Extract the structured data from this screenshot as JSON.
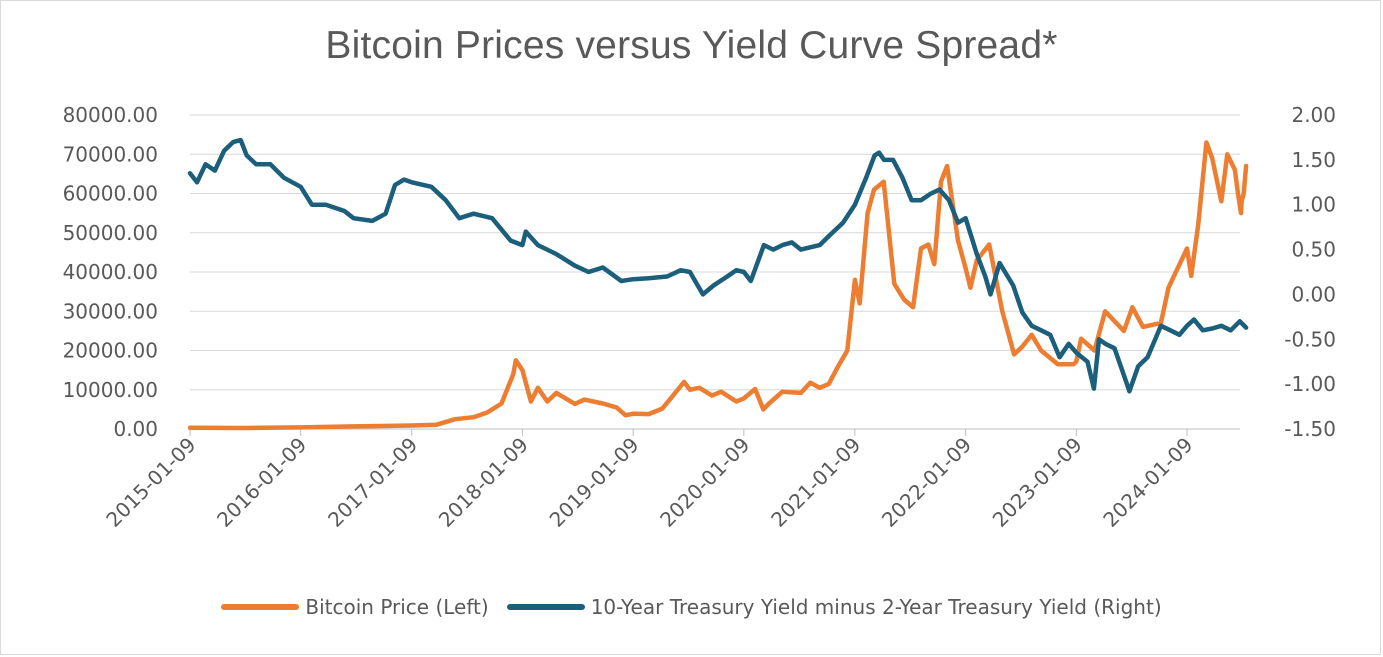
{
  "chart_data": {
    "type": "line",
    "title": "Bitcoin Prices versus Yield Curve Spread*",
    "x_ticks": [
      "2015-01-09",
      "2016-01-09",
      "2017-01-09",
      "2018-01-09",
      "2019-01-09",
      "2020-01-09",
      "2021-01-09",
      "2022-01-09",
      "2023-01-09",
      "2024-01-09"
    ],
    "x_range": [
      "2015-01-09",
      "2024-07-01"
    ],
    "y_left": {
      "ticks": [
        "0.00",
        "10000.00",
        "20000.00",
        "30000.00",
        "40000.00",
        "50000.00",
        "60000.00",
        "70000.00",
        "80000.00"
      ],
      "ylim": [
        0,
        80000
      ]
    },
    "y_right": {
      "ticks": [
        "-1.50",
        "-1.00",
        "-0.50",
        "0.00",
        "0.50",
        "1.00",
        "1.50",
        "2.00"
      ],
      "ylim": [
        -1.5,
        2.0
      ]
    },
    "grid": "horizontal",
    "legend_position": "bottom",
    "series": [
      {
        "name": "Bitcoin Price (Left)",
        "axis": "left",
        "color": "#ed7d31",
        "points": [
          [
            "2015-01-09",
            300
          ],
          [
            "2015-07-01",
            260
          ],
          [
            "2016-01-09",
            400
          ],
          [
            "2016-07-01",
            650
          ],
          [
            "2017-01-09",
            900
          ],
          [
            "2017-04-01",
            1100
          ],
          [
            "2017-06-01",
            2500
          ],
          [
            "2017-08-01",
            3000
          ],
          [
            "2017-09-15",
            4200
          ],
          [
            "2017-11-01",
            6500
          ],
          [
            "2017-12-10",
            14000
          ],
          [
            "2017-12-18",
            17500
          ],
          [
            "2018-01-09",
            15000
          ],
          [
            "2018-02-06",
            7000
          ],
          [
            "2018-03-01",
            10500
          ],
          [
            "2018-04-01",
            7000
          ],
          [
            "2018-05-01",
            9200
          ],
          [
            "2018-07-01",
            6400
          ],
          [
            "2018-08-01",
            7500
          ],
          [
            "2018-10-01",
            6500
          ],
          [
            "2018-11-15",
            5500
          ],
          [
            "2018-12-15",
            3500
          ],
          [
            "2019-01-09",
            3900
          ],
          [
            "2019-03-01",
            3800
          ],
          [
            "2019-04-15",
            5200
          ],
          [
            "2019-05-15",
            8000
          ],
          [
            "2019-06-26",
            12000
          ],
          [
            "2019-07-15",
            10000
          ],
          [
            "2019-08-15",
            10500
          ],
          [
            "2019-09-26",
            8500
          ],
          [
            "2019-10-26",
            9500
          ],
          [
            "2019-12-15",
            7000
          ],
          [
            "2020-01-09",
            7800
          ],
          [
            "2020-02-15",
            10200
          ],
          [
            "2020-03-13",
            5000
          ],
          [
            "2020-04-01",
            6500
          ],
          [
            "2020-05-15",
            9500
          ],
          [
            "2020-07-15",
            9200
          ],
          [
            "2020-08-15",
            11800
          ],
          [
            "2020-09-15",
            10500
          ],
          [
            "2020-10-15",
            11500
          ],
          [
            "2020-11-15",
            16000
          ],
          [
            "2020-12-15",
            20000
          ],
          [
            "2021-01-09",
            38000
          ],
          [
            "2021-01-25",
            32000
          ],
          [
            "2021-02-20",
            55000
          ],
          [
            "2021-03-13",
            61000
          ],
          [
            "2021-04-14",
            63000
          ],
          [
            "2021-05-19",
            37000
          ],
          [
            "2021-06-20",
            33000
          ],
          [
            "2021-07-20",
            31000
          ],
          [
            "2021-08-15",
            46000
          ],
          [
            "2021-09-08",
            47000
          ],
          [
            "2021-09-28",
            42000
          ],
          [
            "2021-10-20",
            63000
          ],
          [
            "2021-11-09",
            67000
          ],
          [
            "2021-12-15",
            48000
          ],
          [
            "2022-01-09",
            41000
          ],
          [
            "2022-01-25",
            36000
          ],
          [
            "2022-02-15",
            43000
          ],
          [
            "2022-03-28",
            47000
          ],
          [
            "2022-05-10",
            30000
          ],
          [
            "2022-06-18",
            19000
          ],
          [
            "2022-07-15",
            21000
          ],
          [
            "2022-08-15",
            24000
          ],
          [
            "2022-09-15",
            20000
          ],
          [
            "2022-11-09",
            16500
          ],
          [
            "2022-12-31",
            16500
          ],
          [
            "2023-01-09",
            17200
          ],
          [
            "2023-01-25",
            23000
          ],
          [
            "2023-03-10",
            20000
          ],
          [
            "2023-04-14",
            30000
          ],
          [
            "2023-06-15",
            25000
          ],
          [
            "2023-07-13",
            31000
          ],
          [
            "2023-08-17",
            26000
          ],
          [
            "2023-10-15",
            27000
          ],
          [
            "2023-11-09",
            36000
          ],
          [
            "2024-01-09",
            46000
          ],
          [
            "2024-01-23",
            39000
          ],
          [
            "2024-02-15",
            52000
          ],
          [
            "2024-03-13",
            73000
          ],
          [
            "2024-04-01",
            69000
          ],
          [
            "2024-05-01",
            58000
          ],
          [
            "2024-05-21",
            70000
          ],
          [
            "2024-06-15",
            66000
          ],
          [
            "2024-06-25",
            60000
          ],
          [
            "2024-07-05",
            55000
          ],
          [
            "2024-07-07",
            58000
          ],
          [
            "2024-07-14",
            60000
          ],
          [
            "2024-07-22",
            67000
          ]
        ]
      },
      {
        "name": "10-Year Treasury Yield minus 2-Year Treasury Yield (Right)",
        "axis": "right",
        "color": "#1b5f7d",
        "points": [
          [
            "2015-01-09",
            1.35
          ],
          [
            "2015-02-01",
            1.25
          ],
          [
            "2015-03-01",
            1.45
          ],
          [
            "2015-04-01",
            1.38
          ],
          [
            "2015-05-01",
            1.6
          ],
          [
            "2015-06-01",
            1.7
          ],
          [
            "2015-06-25",
            1.72
          ],
          [
            "2015-07-15",
            1.55
          ],
          [
            "2015-08-15",
            1.45
          ],
          [
            "2015-10-01",
            1.45
          ],
          [
            "2015-11-15",
            1.3
          ],
          [
            "2016-01-09",
            1.2
          ],
          [
            "2016-02-15",
            1.0
          ],
          [
            "2016-04-01",
            1.0
          ],
          [
            "2016-06-01",
            0.93
          ],
          [
            "2016-07-01",
            0.85
          ],
          [
            "2016-09-01",
            0.82
          ],
          [
            "2016-10-15",
            0.9
          ],
          [
            "2016-11-15",
            1.22
          ],
          [
            "2016-12-15",
            1.28
          ],
          [
            "2017-01-09",
            1.25
          ],
          [
            "2017-03-15",
            1.2
          ],
          [
            "2017-05-01",
            1.05
          ],
          [
            "2017-06-15",
            0.85
          ],
          [
            "2017-08-01",
            0.9
          ],
          [
            "2017-10-01",
            0.85
          ],
          [
            "2017-12-01",
            0.6
          ],
          [
            "2018-01-09",
            0.55
          ],
          [
            "2018-01-20",
            0.7
          ],
          [
            "2018-03-01",
            0.55
          ],
          [
            "2018-05-01",
            0.45
          ],
          [
            "2018-07-01",
            0.32
          ],
          [
            "2018-08-15",
            0.25
          ],
          [
            "2018-10-01",
            0.3
          ],
          [
            "2018-12-01",
            0.15
          ],
          [
            "2019-01-09",
            0.17
          ],
          [
            "2019-03-01",
            0.18
          ],
          [
            "2019-05-01",
            0.2
          ],
          [
            "2019-06-15",
            0.27
          ],
          [
            "2019-07-15",
            0.25
          ],
          [
            "2019-08-27",
            0.0
          ],
          [
            "2019-10-01",
            0.1
          ],
          [
            "2019-11-15",
            0.2
          ],
          [
            "2019-12-15",
            0.27
          ],
          [
            "2020-01-09",
            0.25
          ],
          [
            "2020-02-01",
            0.15
          ],
          [
            "2020-03-15",
            0.55
          ],
          [
            "2020-04-15",
            0.5
          ],
          [
            "2020-05-15",
            0.55
          ],
          [
            "2020-06-15",
            0.58
          ],
          [
            "2020-07-15",
            0.5
          ],
          [
            "2020-09-15",
            0.55
          ],
          [
            "2020-10-15",
            0.65
          ],
          [
            "2020-12-01",
            0.8
          ],
          [
            "2021-01-09",
            1.0
          ],
          [
            "2021-02-15",
            1.3
          ],
          [
            "2021-03-15",
            1.55
          ],
          [
            "2021-03-30",
            1.58
          ],
          [
            "2021-04-15",
            1.5
          ],
          [
            "2021-05-15",
            1.5
          ],
          [
            "2021-06-15",
            1.3
          ],
          [
            "2021-07-15",
            1.05
          ],
          [
            "2021-08-15",
            1.05
          ],
          [
            "2021-09-15",
            1.12
          ],
          [
            "2021-10-15",
            1.17
          ],
          [
            "2021-11-15",
            1.05
          ],
          [
            "2021-12-15",
            0.8
          ],
          [
            "2022-01-09",
            0.85
          ],
          [
            "2022-02-15",
            0.45
          ],
          [
            "2022-03-15",
            0.2
          ],
          [
            "2022-04-01",
            0.0
          ],
          [
            "2022-05-01",
            0.35
          ],
          [
            "2022-06-15",
            0.1
          ],
          [
            "2022-07-15",
            -0.2
          ],
          [
            "2022-08-15",
            -0.35
          ],
          [
            "2022-09-15",
            -0.4
          ],
          [
            "2022-10-15",
            -0.45
          ],
          [
            "2022-11-15",
            -0.7
          ],
          [
            "2022-12-15",
            -0.55
          ],
          [
            "2023-01-09",
            -0.65
          ],
          [
            "2023-02-15",
            -0.75
          ],
          [
            "2023-03-08",
            -1.05
          ],
          [
            "2023-03-25",
            -0.5
          ],
          [
            "2023-04-15",
            -0.55
          ],
          [
            "2023-05-15",
            -0.6
          ],
          [
            "2023-06-15",
            -0.9
          ],
          [
            "2023-07-03",
            -1.08
          ],
          [
            "2023-08-01",
            -0.8
          ],
          [
            "2023-09-01",
            -0.7
          ],
          [
            "2023-10-15",
            -0.35
          ],
          [
            "2023-11-15",
            -0.4
          ],
          [
            "2023-12-15",
            -0.45
          ],
          [
            "2024-01-09",
            -0.35
          ],
          [
            "2024-02-01",
            -0.28
          ],
          [
            "2024-03-01",
            -0.4
          ],
          [
            "2024-04-01",
            -0.38
          ],
          [
            "2024-05-01",
            -0.35
          ],
          [
            "2024-06-01",
            -0.4
          ],
          [
            "2024-07-01",
            -0.3
          ],
          [
            "2024-07-22",
            -0.37
          ]
        ]
      }
    ]
  }
}
